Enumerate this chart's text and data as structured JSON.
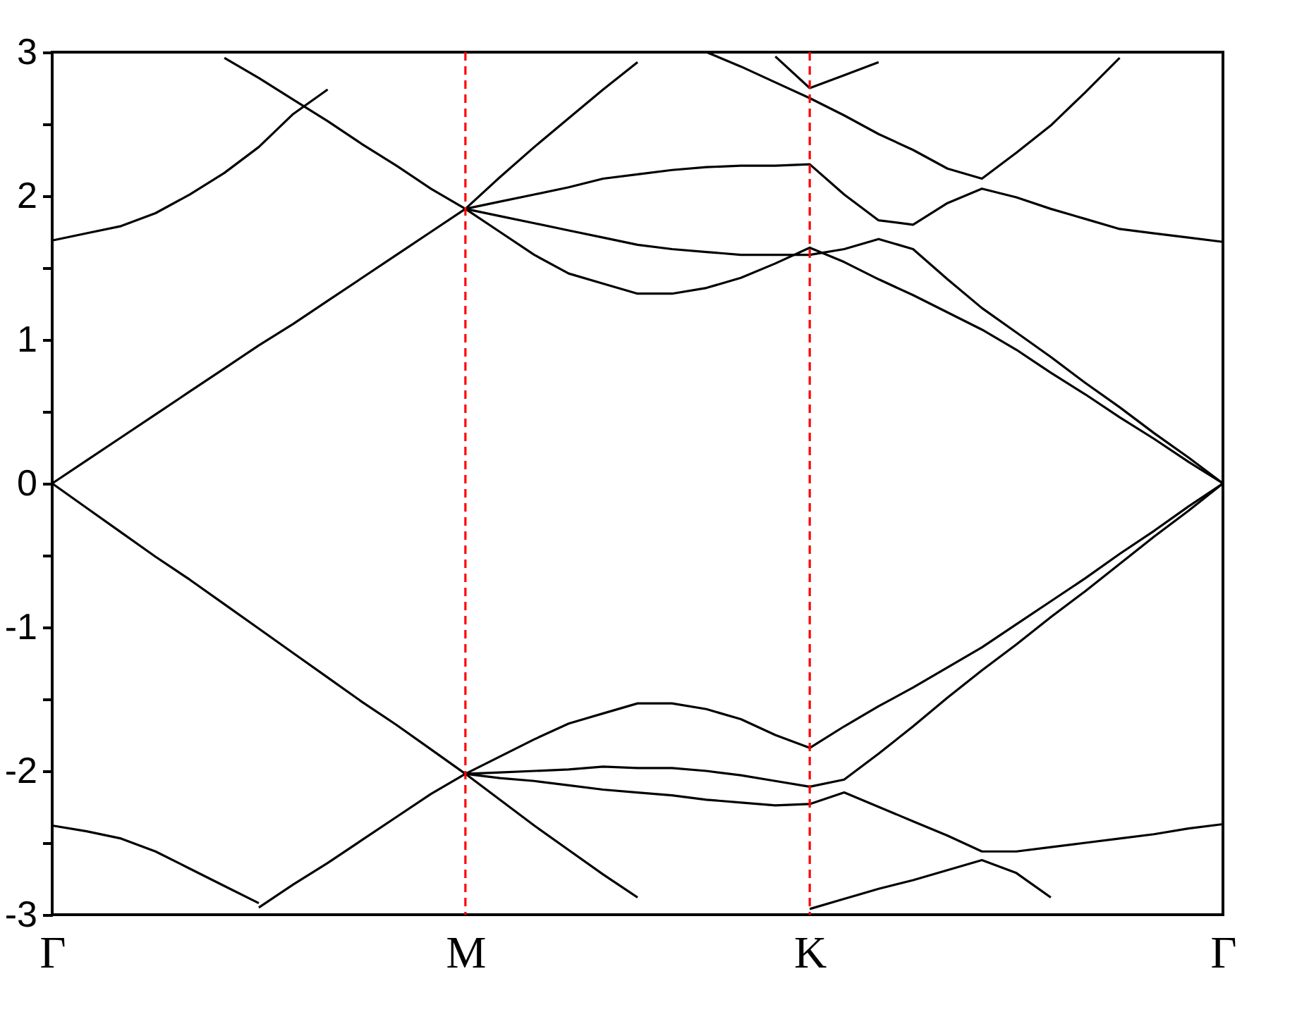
{
  "chart_data": {
    "type": "line",
    "ylim": [
      -3,
      3
    ],
    "categories": [
      "Γ",
      null,
      null,
      null,
      null,
      null,
      null,
      null,
      null,
      null,
      null,
      null,
      "M",
      null,
      null,
      null,
      null,
      null,
      null,
      null,
      null,
      null,
      "K",
      null,
      null,
      null,
      null,
      null,
      null,
      null,
      null,
      null,
      null,
      null,
      "Γ"
    ],
    "yticks": [
      -3,
      {
        "value": -2.5,
        "label": null
      },
      -2,
      {
        "value": -1.5,
        "label": null
      },
      -1,
      {
        "value": -0.5,
        "label": null
      },
      0,
      {
        "value": 0.5,
        "label": null
      },
      1,
      {
        "value": 1.5,
        "label": null
      },
      2,
      {
        "value": 2.5,
        "label": null
      },
      3
    ],
    "grid": false,
    "marker": "none",
    "line_style": "solid",
    "ref_lines": [
      {
        "axis": "x",
        "value": "M",
        "color": "#ff0000",
        "line_style": "dashed"
      },
      {
        "axis": "x",
        "value": "K",
        "color": "#ff0000",
        "line_style": "dashed"
      }
    ],
    "series": [
      {
        "color": "#000000",
        "values": [
          0,
          0.16,
          0.32,
          0.48,
          0.64,
          0.8,
          0.96,
          1.11,
          1.27,
          1.43,
          1.59,
          1.75,
          1.91,
          2.13,
          2.34,
          2.54,
          2.74,
          2.93,
          null,
          null,
          null,
          null,
          null,
          null,
          null,
          null,
          null,
          null,
          null,
          null,
          null,
          null,
          null,
          null,
          null
        ]
      },
      {
        "color": "#000000",
        "values": [
          0,
          -0.17,
          -0.34,
          -0.51,
          -0.67,
          -0.84,
          -1.01,
          -1.18,
          -1.35,
          -1.52,
          -1.68,
          -1.85,
          -2.02,
          -2.2,
          -2.38,
          -2.55,
          -2.72,
          -2.88,
          null,
          null,
          null,
          null,
          null,
          null,
          null,
          null,
          null,
          null,
          null,
          null,
          null,
          null,
          null,
          null,
          null
        ]
      },
      {
        "color": "#000000",
        "values": [
          null,
          null,
          null,
          null,
          null,
          null,
          null,
          null,
          null,
          null,
          null,
          null,
          1.91,
          1.86,
          1.81,
          1.76,
          1.71,
          1.66,
          1.63,
          1.61,
          1.59,
          1.59,
          1.59,
          1.63,
          1.7,
          1.63,
          1.42,
          1.22,
          1.05,
          0.88,
          0.7,
          0.53,
          0.35,
          0.18,
          0
        ]
      },
      {
        "color": "#000000",
        "values": [
          null,
          null,
          null,
          null,
          null,
          2.96,
          2.82,
          2.67,
          2.52,
          2.36,
          2.21,
          2.05,
          1.91,
          1.75,
          1.59,
          1.46,
          1.39,
          1.32,
          1.32,
          1.36,
          1.43,
          1.53,
          1.64,
          1.54,
          1.42,
          1.31,
          1.19,
          1.07,
          0.93,
          0.77,
          0.62,
          0.46,
          0.31,
          0.15,
          0
        ]
      },
      {
        "color": "#000000",
        "values": [
          null,
          null,
          null,
          null,
          null,
          null,
          null,
          null,
          null,
          null,
          null,
          null,
          1.91,
          1.96,
          2.01,
          2.06,
          2.12,
          2.15,
          2.18,
          2.2,
          2.21,
          2.21,
          2.22,
          2.01,
          1.83,
          1.8,
          1.95,
          2.05,
          1.99,
          1.91,
          1.84,
          1.77,
          1.74,
          1.71,
          1.68
        ]
      },
      {
        "color": "#000000",
        "values": [
          1.69,
          1.74,
          1.79,
          1.88,
          2.01,
          2.16,
          2.34,
          2.57,
          2.74,
          null,
          null,
          null,
          null,
          null,
          null,
          null,
          null,
          null,
          null,
          null,
          null,
          null,
          null,
          null,
          null,
          null,
          null,
          null,
          null,
          null,
          null,
          null,
          null,
          null,
          null
        ]
      },
      {
        "color": "#000000",
        "values": [
          null,
          null,
          null,
          null,
          null,
          null,
          null,
          null,
          null,
          null,
          null,
          null,
          null,
          null,
          null,
          null,
          null,
          null,
          null,
          3.0,
          2.9,
          2.79,
          2.68,
          2.56,
          2.43,
          2.32,
          2.19,
          2.12,
          2.3,
          2.49,
          2.72,
          2.96,
          null,
          null,
          null
        ]
      },
      {
        "color": "#000000",
        "values": [
          null,
          null,
          null,
          null,
          null,
          null,
          null,
          null,
          null,
          null,
          null,
          null,
          null,
          null,
          null,
          null,
          null,
          null,
          null,
          null,
          null,
          2.97,
          2.75,
          2.84,
          2.93,
          null,
          null,
          null,
          null,
          null,
          null,
          null,
          null,
          null,
          null
        ]
      },
      {
        "color": "#000000",
        "values": [
          null,
          null,
          null,
          null,
          null,
          null,
          -2.95,
          -2.79,
          -2.64,
          -2.48,
          -2.32,
          -2.16,
          -2.02,
          -1.9,
          -1.78,
          -1.67,
          -1.6,
          -1.53,
          -1.53,
          -1.57,
          -1.64,
          -1.75,
          -1.84,
          -1.69,
          -1.55,
          -1.42,
          -1.28,
          -1.14,
          -0.98,
          -0.82,
          -0.66,
          -0.49,
          -0.33,
          -0.16,
          0
        ]
      },
      {
        "color": "#000000",
        "values": [
          null,
          null,
          null,
          null,
          null,
          null,
          null,
          null,
          null,
          null,
          null,
          null,
          -2.02,
          -2.01,
          -2.0,
          -1.99,
          -1.97,
          -1.98,
          -1.98,
          -2.0,
          -2.03,
          -2.07,
          -2.11,
          -2.06,
          -1.88,
          -1.69,
          -1.49,
          -1.3,
          -1.12,
          -0.93,
          -0.75,
          -0.56,
          -0.37,
          -0.19,
          0
        ]
      },
      {
        "color": "#000000",
        "values": [
          null,
          null,
          null,
          null,
          null,
          null,
          null,
          null,
          null,
          null,
          null,
          null,
          -2.02,
          -2.05,
          -2.07,
          -2.1,
          -2.13,
          -2.15,
          -2.17,
          -2.2,
          -2.22,
          -2.24,
          -2.23,
          -2.15,
          -2.25,
          -2.35,
          -2.45,
          -2.56,
          -2.56,
          -2.53,
          -2.5,
          -2.47,
          -2.44,
          -2.4,
          -2.37
        ]
      },
      {
        "color": "#000000",
        "values": [
          -2.38,
          -2.42,
          -2.47,
          -2.56,
          -2.68,
          -2.8,
          -2.92,
          null,
          null,
          null,
          null,
          null,
          null,
          null,
          null,
          null,
          null,
          null,
          null,
          null,
          null,
          null,
          null,
          null,
          null,
          null,
          null,
          null,
          null,
          null,
          null,
          null,
          null,
          null,
          null
        ]
      },
      {
        "color": "#000000",
        "values": [
          null,
          null,
          null,
          null,
          null,
          null,
          null,
          null,
          null,
          null,
          null,
          null,
          null,
          null,
          null,
          null,
          null,
          null,
          null,
          null,
          null,
          null,
          -2.96,
          -2.89,
          -2.82,
          -2.76,
          -2.69,
          -2.62,
          -2.71,
          -2.88,
          null,
          null,
          null,
          null,
          null
        ]
      }
    ]
  }
}
